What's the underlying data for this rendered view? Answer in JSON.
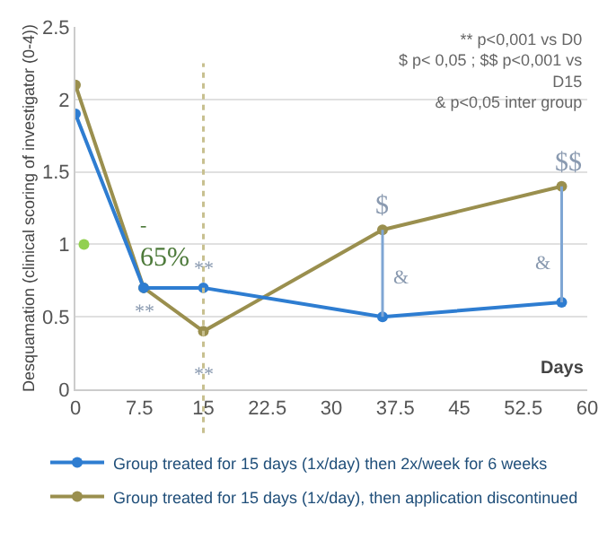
{
  "chart_data": {
    "type": "line",
    "xlabel": "Days",
    "ylabel": "Desquamation (clinical scoring of investigator (0-4))",
    "x": [
      0,
      8,
      15,
      36,
      57
    ],
    "series": [
      {
        "name": "Group treated for 15 days (1x/day) then 2x/week for 6 weeks",
        "color": "#2e7dd1",
        "values": [
          1.9,
          0.7,
          0.7,
          0.5,
          0.6
        ]
      },
      {
        "name": "Group treated for 15 days (1x/day), then application discontinued",
        "color": "#9a8f4e",
        "values": [
          2.1,
          0.7,
          0.4,
          1.1,
          1.4
        ]
      },
      {
        "type": "scatter",
        "color": "#92d050",
        "x": [
          1
        ],
        "values": [
          1.0
        ]
      }
    ],
    "xlim": [
      0,
      60
    ],
    "xticks": [
      0,
      7.5,
      15,
      22.5,
      30,
      37.5,
      45,
      52.5,
      60
    ],
    "ylim": [
      0,
      2.5
    ],
    "yticks": [
      0,
      0.5,
      1,
      1.5,
      2,
      2.5
    ],
    "grid": "y",
    "legend": "bottom",
    "marker": "circle",
    "line_style": "solid",
    "ref_lines": [
      {
        "axis": "x",
        "value": 15,
        "color": "#c8c090",
        "line_style": "dotted"
      }
    ],
    "annotations": [
      "** p<0,001 vs D0\n$ p< 0,05 ; $$ p<0,001 vs\nD15\n& p<0,05 inter group",
      {
        "text": "**",
        "x": 15,
        "y": 0.7
      },
      {
        "text": "**",
        "x": 8,
        "y": 0.7
      },
      {
        "text": "**",
        "x": 15,
        "y": 0.4
      },
      {
        "text": "$",
        "x": 36,
        "y": 1.1
      },
      {
        "text": "$$",
        "x": 57,
        "y": 1.4
      },
      {
        "text": "&",
        "x": 36,
        "y": 0.5
      },
      {
        "text": "&",
        "x": 57,
        "y": 0.6
      },
      {
        "text": "-",
        "x": 8,
        "y": 0.7
      },
      {
        "text": "65%",
        "x": 8,
        "y": 0.7
      }
    ]
  }
}
